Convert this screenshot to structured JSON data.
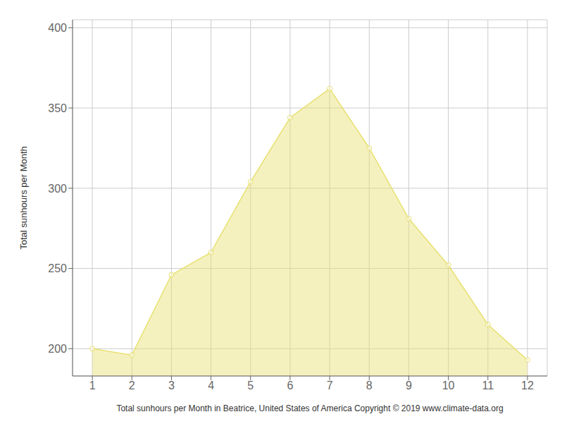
{
  "chart_data": {
    "type": "area",
    "x": [
      1,
      2,
      3,
      4,
      5,
      6,
      7,
      8,
      9,
      10,
      11,
      12
    ],
    "values": [
      200,
      196,
      246,
      260,
      304,
      344,
      362,
      325,
      281,
      252,
      215,
      193
    ],
    "color": "#E8E070",
    "marker": "circle",
    "xlabel": "Total sunhours per Month in Beatrice, United States of America Copyright © 2019 www.climate-data.org",
    "ylabel": "Total sunhours per Month",
    "xlim": [
      0.5,
      12.5
    ],
    "ylim": [
      183,
      405
    ],
    "xticks": [
      1,
      2,
      3,
      4,
      5,
      6,
      7,
      8,
      9,
      10,
      11,
      12
    ],
    "yticks": [
      200,
      250,
      300,
      350,
      400
    ],
    "grid": true
  }
}
